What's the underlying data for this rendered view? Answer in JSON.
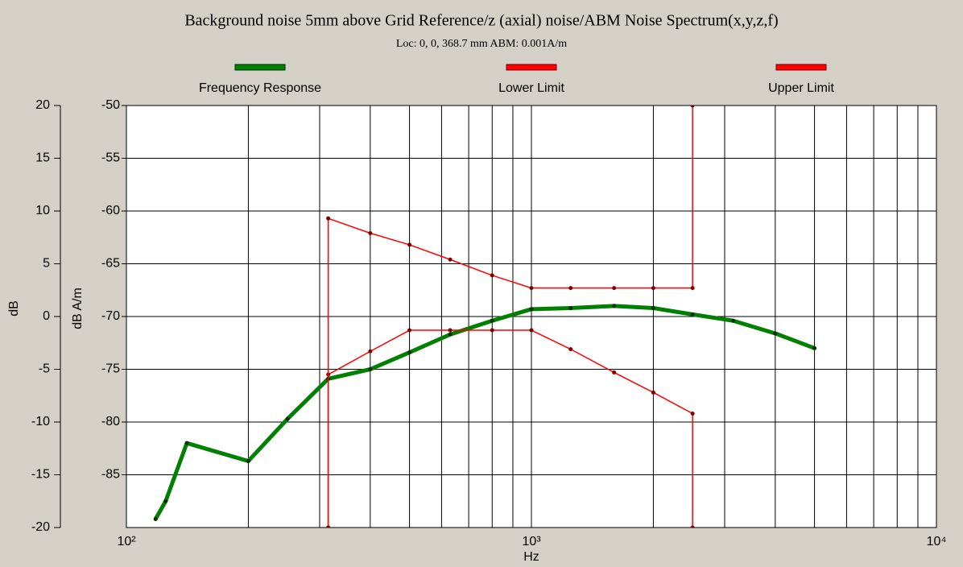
{
  "chart_data": {
    "type": "line",
    "title": "Background noise 5mm above Grid Reference/z (axial) noise/ABM Noise Spectrum(x,y,z,f)",
    "subtitle": "Loc: 0, 0, 368.7 mm ABM: 0.001A/m",
    "x_label": "Hz",
    "y_label": "dB A/m",
    "y2_label": "dB",
    "log_x": true,
    "grid": true,
    "xlim": [
      100,
      10000
    ],
    "xticks": [
      {
        "value": 100,
        "label": "10²"
      },
      {
        "value": 1000,
        "label": "10³"
      },
      {
        "value": 10000,
        "label": "10⁴"
      }
    ],
    "xgrid": [
      200,
      300,
      400,
      500,
      600,
      700,
      800,
      900,
      2000,
      3000,
      4000,
      5000,
      6000,
      7000,
      8000,
      9000
    ],
    "ylim": [
      -90,
      -50
    ],
    "yticks": [
      -50,
      -55,
      -60,
      -65,
      -70,
      -75,
      -80,
      -85
    ],
    "y2lim": [
      -20,
      20
    ],
    "y2ticks": [
      20,
      15,
      10,
      5,
      0,
      -5,
      -10,
      -15,
      -20
    ],
    "series": [
      {
        "name": "Frequency Response",
        "color": "#008000",
        "marker_color": "#003000",
        "width": 5,
        "x": [
          118,
          125,
          141,
          200,
          250,
          315,
          400,
          500,
          630,
          800,
          1000,
          1250,
          1600,
          2000,
          2500,
          3150,
          4000,
          5000
        ],
        "values": [
          -89.2,
          -87.5,
          -82,
          -83.7,
          -79.7,
          -75.9,
          -75,
          -73.4,
          -71.7,
          -70.4,
          -69.3,
          -69.2,
          -69,
          -69.2,
          -69.8,
          -70.4,
          -71.6,
          -73
        ]
      },
      {
        "name": "Lower Limit",
        "color": "#ff0000",
        "marker_color": "#800000",
        "width": 1.5,
        "x": [
          315,
          315,
          400,
          500,
          630,
          800,
          1000,
          1250,
          1600,
          2000,
          2500,
          2500
        ],
        "values": [
          -90,
          -75.5,
          -73.3,
          -71.3,
          -71.3,
          -71.3,
          -71.3,
          -73.1,
          -75.3,
          -77.2,
          -79.2,
          -90
        ]
      },
      {
        "name": "Upper Limit",
        "color": "#ff0000",
        "marker_color": "#800000",
        "width": 1.5,
        "x": [
          315,
          315,
          400,
          500,
          630,
          800,
          1000,
          1250,
          1600,
          2000,
          2500,
          2500
        ],
        "values": [
          -90,
          -60.7,
          -62.1,
          -63.2,
          -64.6,
          -66.1,
          -67.3,
          -67.3,
          -67.3,
          -67.3,
          -67.3,
          -50
        ]
      }
    ]
  }
}
